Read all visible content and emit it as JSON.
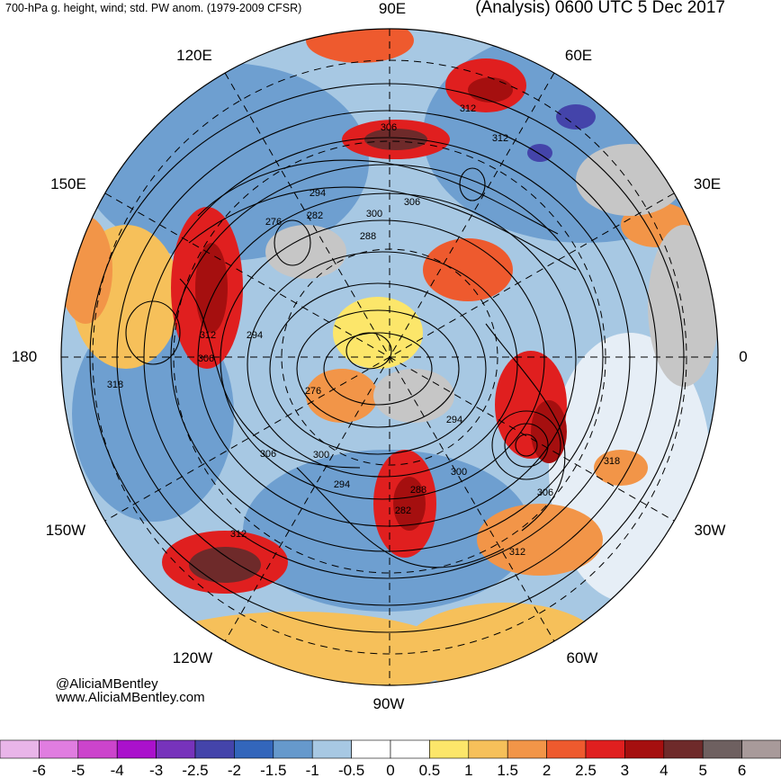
{
  "header": {
    "product": "700-hPa g. height, wind; std. PW anom. (1979-2009 CFSR)",
    "valid": "(Analysis) 0600 UTC 5 Dec 2017"
  },
  "longitude_labels": {
    "lon_90e": "90E",
    "lon_60e": "60E",
    "lon_120e": "120E",
    "lon_30e": "30E",
    "lon_150e": "150E",
    "lon_180": "180",
    "lon_0": "0",
    "lon_150w": "150W",
    "lon_30w": "30W",
    "lon_120w": "120W",
    "lon_60w": "60W",
    "lon_90w": "90W"
  },
  "contour_labels": [
    "312",
    "306",
    "312",
    "294",
    "282",
    "276",
    "300",
    "288",
    "306",
    "312",
    "294",
    "306",
    "318",
    "276",
    "306",
    "300",
    "294",
    "288",
    "282",
    "294",
    "300",
    "318",
    "306",
    "312",
    "312"
  ],
  "credits": {
    "name": "@AliciaMBentley",
    "website": "www.AliciaMBentley.com"
  },
  "colorbar": {
    "ticks": [
      "-6",
      "-5",
      "-4",
      "-3",
      "-2.5",
      "-2",
      "-1.5",
      "-1",
      "-0.5",
      "0",
      "0.5",
      "1",
      "1.5",
      "2",
      "2.5",
      "3",
      "4",
      "5",
      "6"
    ],
    "colors": [
      "#e9b5e9",
      "#e07de0",
      "#cc44cc",
      "#aa11cc",
      "#7733bb",
      "#4444aa",
      "#3366bb",
      "#6699cc",
      "#a7c8e3",
      "#ffffff",
      "#ffffff",
      "#fce66a",
      "#f6c05a",
      "#f29548",
      "#ee5a2e",
      "#e01f1f",
      "#a50f0f",
      "#6e2a2a",
      "#6e6060",
      "#a89a9a"
    ]
  },
  "colors": {
    "land_gray": "#c6c6c6",
    "contour": "#000000"
  }
}
